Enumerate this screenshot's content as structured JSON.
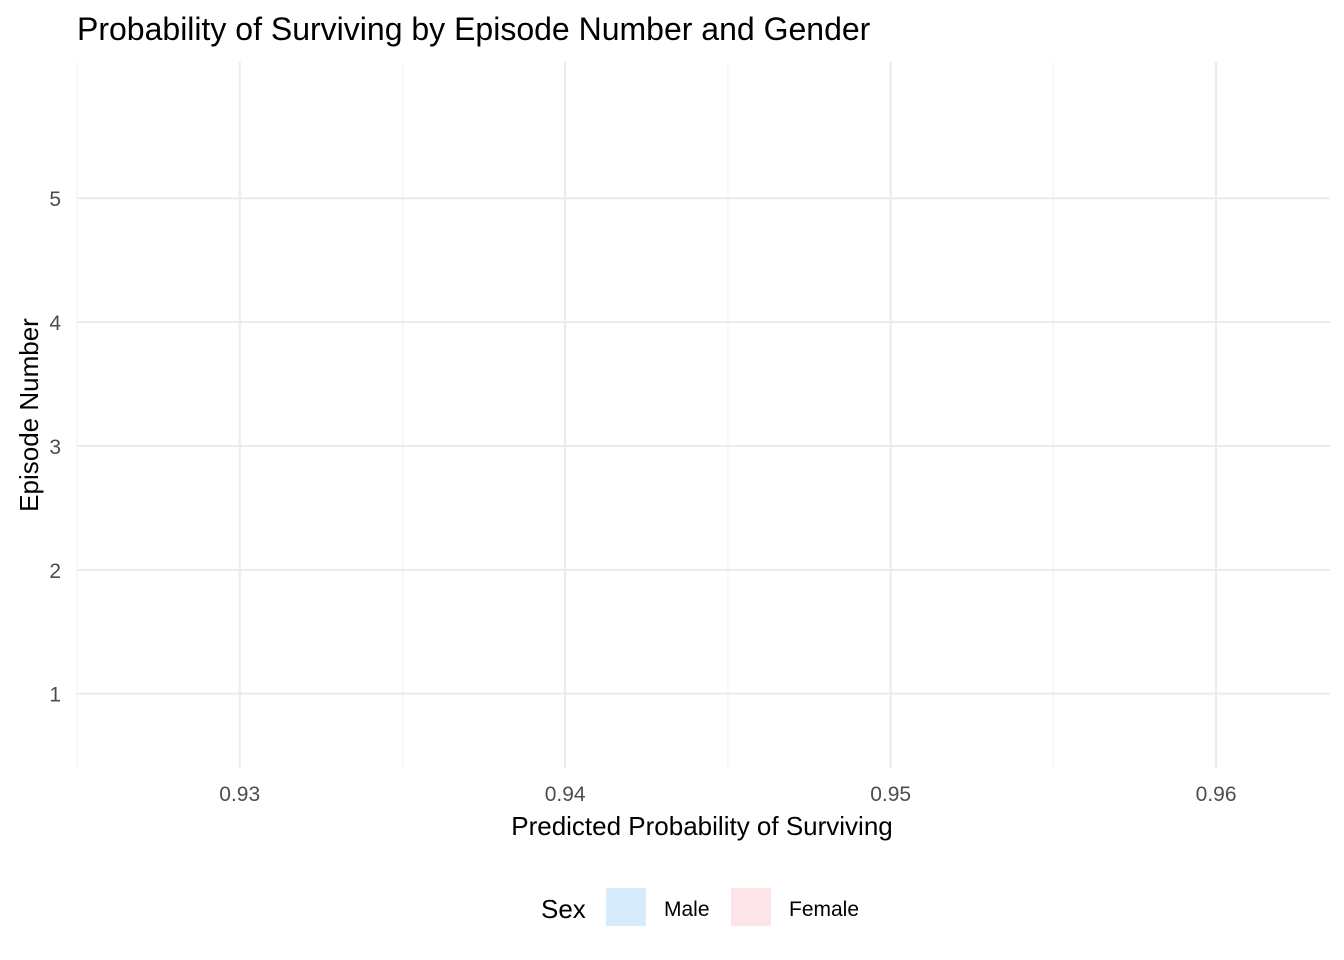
{
  "chart_data": {
    "type": "bar",
    "title": "Probability of Surviving by Episode Number and Gender",
    "xlabel": "Predicted Probability of Surviving",
    "ylabel": "Episode Number",
    "xlim": [
      0.925,
      0.9635
    ],
    "ylim": [
      0.4,
      6.1
    ],
    "x_ticks": [
      "0.93",
      "0.94",
      "0.95",
      "0.96"
    ],
    "y_ticks": [
      "1",
      "2",
      "3",
      "4",
      "5"
    ],
    "series": [],
    "grid": true,
    "legend": {
      "title": "Sex",
      "position": "bottom",
      "entries": [
        {
          "label": "Male",
          "color": "#d6ebfc"
        },
        {
          "label": "Female",
          "color": "#fde4e8"
        }
      ]
    }
  }
}
